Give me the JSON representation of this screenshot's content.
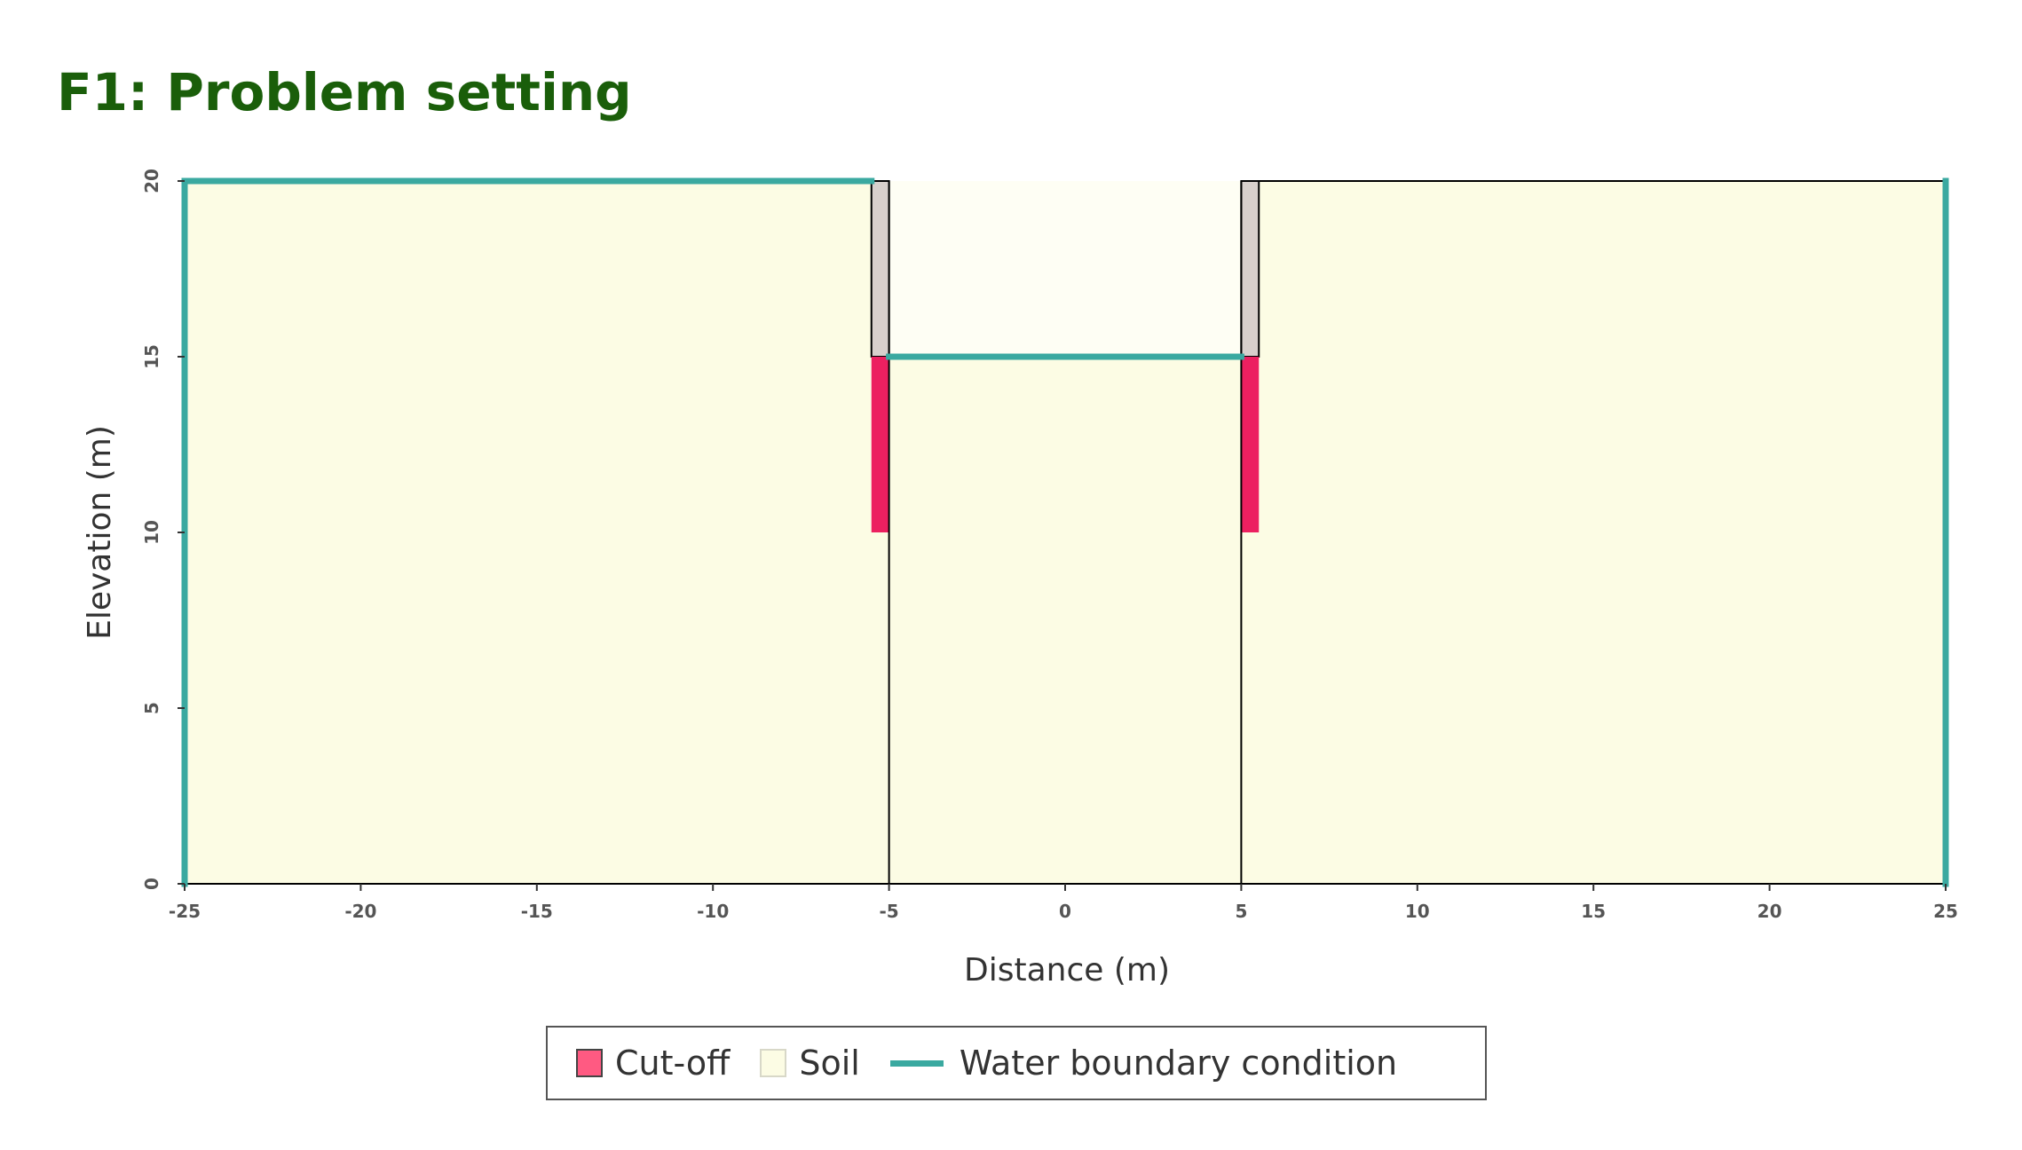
{
  "title": "F1: Problem setting",
  "colors": {
    "title": "#1a5e0a",
    "soil": "#fcfce4",
    "soil_upper": "#fefef4",
    "cutoff": "#ec2060",
    "cutoff_legend": "#ff5a82",
    "wall": "#d8d0cc",
    "water": "#3aa9a0",
    "outline": "#000000"
  },
  "chart_data": {
    "type": "cross-section",
    "xlabel": "Distance (m)",
    "ylabel": "Elevation (m)",
    "xlim": [
      -25,
      25
    ],
    "ylim": [
      0,
      20
    ],
    "x_ticks": [
      "-25",
      "-20",
      "-15",
      "-10",
      "-5",
      "0",
      "5",
      "10",
      "15",
      "20",
      "25"
    ],
    "y_ticks": [
      "0",
      "5",
      "10",
      "15",
      "20"
    ],
    "soil_regions": [
      {
        "name": "left-soil",
        "x": [
          -25,
          -5
        ],
        "y": [
          0,
          20
        ]
      },
      {
        "name": "middle-soil",
        "x": [
          -5,
          5
        ],
        "y": [
          0,
          15
        ]
      },
      {
        "name": "right-soil",
        "x": [
          5,
          25
        ],
        "y": [
          0,
          20
        ]
      }
    ],
    "walls": [
      {
        "name": "left-wall",
        "x": [
          -5.5,
          -5
        ],
        "y": [
          15,
          20
        ]
      },
      {
        "name": "right-wall",
        "x": [
          5,
          5.5
        ],
        "y": [
          15,
          20
        ]
      }
    ],
    "cutoffs": [
      {
        "name": "left-cutoff",
        "x": [
          -5.5,
          -5
        ],
        "y": [
          10,
          15
        ]
      },
      {
        "name": "right-cutoff",
        "x": [
          5,
          5.5
        ],
        "y": [
          10,
          15
        ]
      }
    ],
    "water_boundaries": [
      {
        "name": "left-top",
        "points": [
          [
            -25,
            20
          ],
          [
            -5.5,
            20
          ]
        ]
      },
      {
        "name": "left-side",
        "points": [
          [
            -25,
            0
          ],
          [
            -25,
            20
          ]
        ]
      },
      {
        "name": "middle-top",
        "points": [
          [
            -5,
            15
          ],
          [
            5,
            15
          ]
        ]
      },
      {
        "name": "right-side",
        "points": [
          [
            25,
            0
          ],
          [
            25,
            20
          ]
        ]
      }
    ],
    "legend": [
      "Cut-off",
      "Soil",
      "Water boundary condition"
    ]
  }
}
